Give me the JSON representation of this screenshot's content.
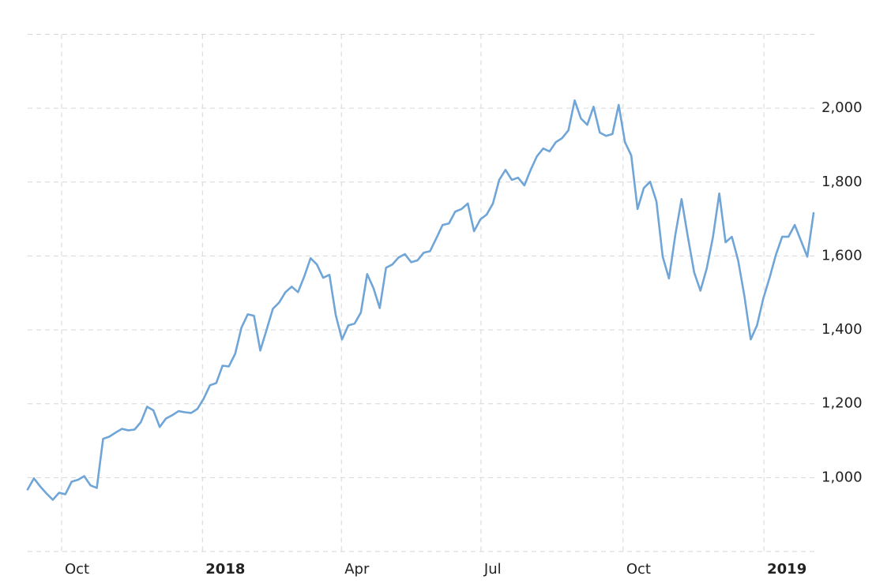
{
  "chart_data": {
    "type": "line",
    "series": [
      {
        "color": "#6fa5d7",
        "values": [
          968,
          998,
          976,
          957,
          940,
          959,
          955,
          989,
          994,
          1004,
          979,
          972,
          1105,
          1111,
          1122,
          1132,
          1128,
          1130,
          1150,
          1192,
          1182,
          1137,
          1160,
          1169,
          1180,
          1177,
          1175,
          1186,
          1214,
          1250,
          1256,
          1303,
          1301,
          1335,
          1406,
          1442,
          1438,
          1344,
          1400,
          1457,
          1474,
          1502,
          1517,
          1502,
          1545,
          1594,
          1577,
          1541,
          1549,
          1440,
          1374,
          1412,
          1417,
          1447,
          1551,
          1513,
          1459,
          1568,
          1577,
          1596,
          1605,
          1583,
          1588,
          1609,
          1613,
          1648,
          1684,
          1688,
          1720,
          1727,
          1742,
          1667,
          1699,
          1712,
          1742,
          1806,
          1833,
          1806,
          1812,
          1791,
          1833,
          1870,
          1891,
          1883,
          1908,
          1919,
          1940,
          2021,
          1972,
          1955,
          2004,
          1934,
          1925,
          1930,
          2009,
          1908,
          1872,
          1727,
          1784,
          1801,
          1748,
          1598,
          1539,
          1656,
          1754,
          1652,
          1556,
          1506,
          1566,
          1652,
          1769,
          1637,
          1652,
          1588,
          1491,
          1374,
          1412,
          1485,
          1541,
          1603,
          1652,
          1652,
          1684,
          1641,
          1598,
          1716
        ]
      }
    ],
    "xlim": [
      0,
      125.25
    ],
    "xticks": [
      {
        "value": 5.4,
        "label": "Oct"
      },
      {
        "value": 27.8,
        "label": "2018",
        "bold": true
      },
      {
        "value": 49.9,
        "label": "Apr"
      },
      {
        "value": 72.1,
        "label": "Jul"
      },
      {
        "value": 94.7,
        "label": "Oct"
      },
      {
        "value": 117.1,
        "label": "2019",
        "bold": true
      }
    ],
    "ylim": [
      800,
      2200
    ],
    "yticks": [
      {
        "value": 1000,
        "label": "1,000"
      },
      {
        "value": 1200,
        "label": "1,200"
      },
      {
        "value": 1400,
        "label": "1,400"
      },
      {
        "value": 1600,
        "label": "1,600"
      },
      {
        "value": 1800,
        "label": "1,800"
      },
      {
        "value": 2000,
        "label": "2,000"
      }
    ],
    "grid": true
  }
}
